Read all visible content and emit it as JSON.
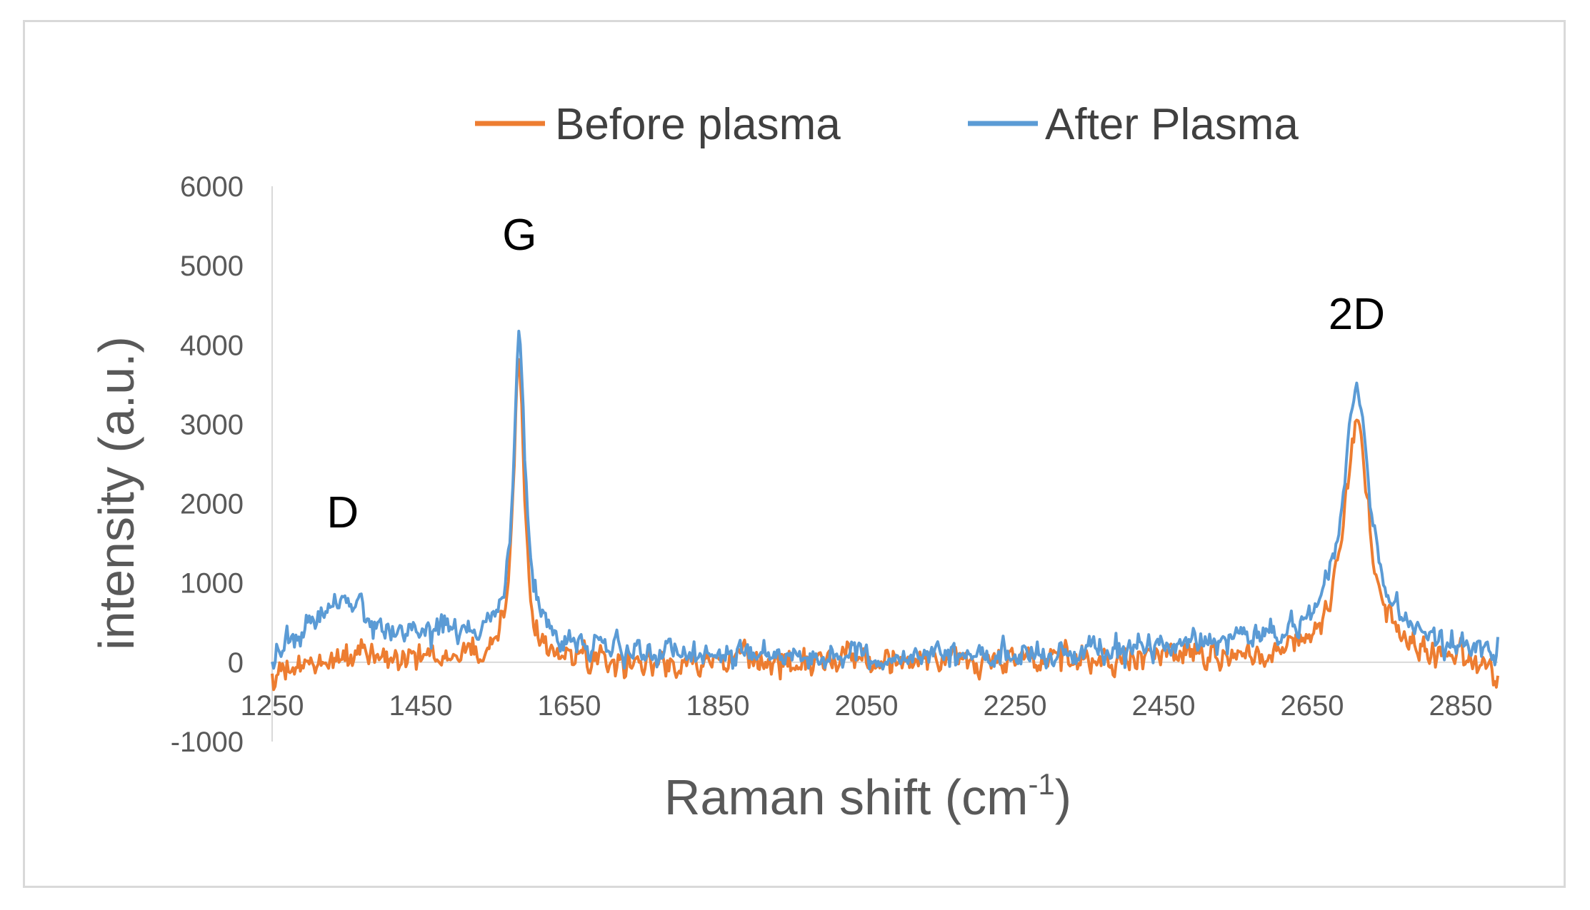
{
  "chart_data": {
    "type": "line",
    "title": "",
    "xlabel": "Raman shift (cm",
    "xlabel_superscript": "-1",
    "xlabel_suffix": ")",
    "ylabel": "intensity (a.u.)",
    "xlim": [
      1250,
      2900
    ],
    "ylim": [
      -1000,
      6000
    ],
    "x_ticks": [
      1250,
      1450,
      1650,
      1850,
      2050,
      2250,
      2450,
      2650,
      2850
    ],
    "y_ticks": [
      6000,
      5000,
      4000,
      3000,
      2000,
      1000,
      0,
      -1000
    ],
    "grid": false,
    "legend_position": "top",
    "annotations": [
      {
        "text": "D",
        "x": 1345,
        "y": 1700
      },
      {
        "text": "G",
        "x": 1583,
        "y": 5200
      },
      {
        "text": "2D",
        "x": 2710,
        "y": 4200
      }
    ],
    "series": [
      {
        "name": "Before plasma",
        "color": "#ED7D31",
        "noise": 80,
        "baseline": [
          [
            1250,
            -200
          ],
          [
            1400,
            0
          ],
          [
            1550,
            100
          ],
          [
            1700,
            -50
          ],
          [
            2050,
            20
          ],
          [
            2250,
            0
          ],
          [
            2550,
            80
          ],
          [
            2850,
            0
          ],
          [
            2900,
            -150
          ]
        ],
        "peaks": [
          {
            "center": 1340,
            "height": 150,
            "width": 40
          },
          {
            "center": 1582,
            "height": 3650,
            "width": 9
          },
          {
            "center": 2710,
            "height": 3000,
            "width": 20
          }
        ]
      },
      {
        "name": "After Plasma",
        "color": "#5B9BD5",
        "noise": 75,
        "baseline": [
          [
            1250,
            0
          ],
          [
            1300,
            300
          ],
          [
            1400,
            320
          ],
          [
            1500,
            350
          ],
          [
            1600,
            300
          ],
          [
            1700,
            150
          ],
          [
            2050,
            50
          ],
          [
            2250,
            80
          ],
          [
            2550,
            250
          ],
          [
            2650,
            330
          ],
          [
            2850,
            150
          ],
          [
            2900,
            100
          ]
        ],
        "peaks": [
          {
            "center": 1345,
            "height": 520,
            "width": 30
          },
          {
            "center": 1583,
            "height": 3850,
            "width": 9
          },
          {
            "center": 2710,
            "height": 3150,
            "width": 21
          }
        ]
      }
    ]
  }
}
